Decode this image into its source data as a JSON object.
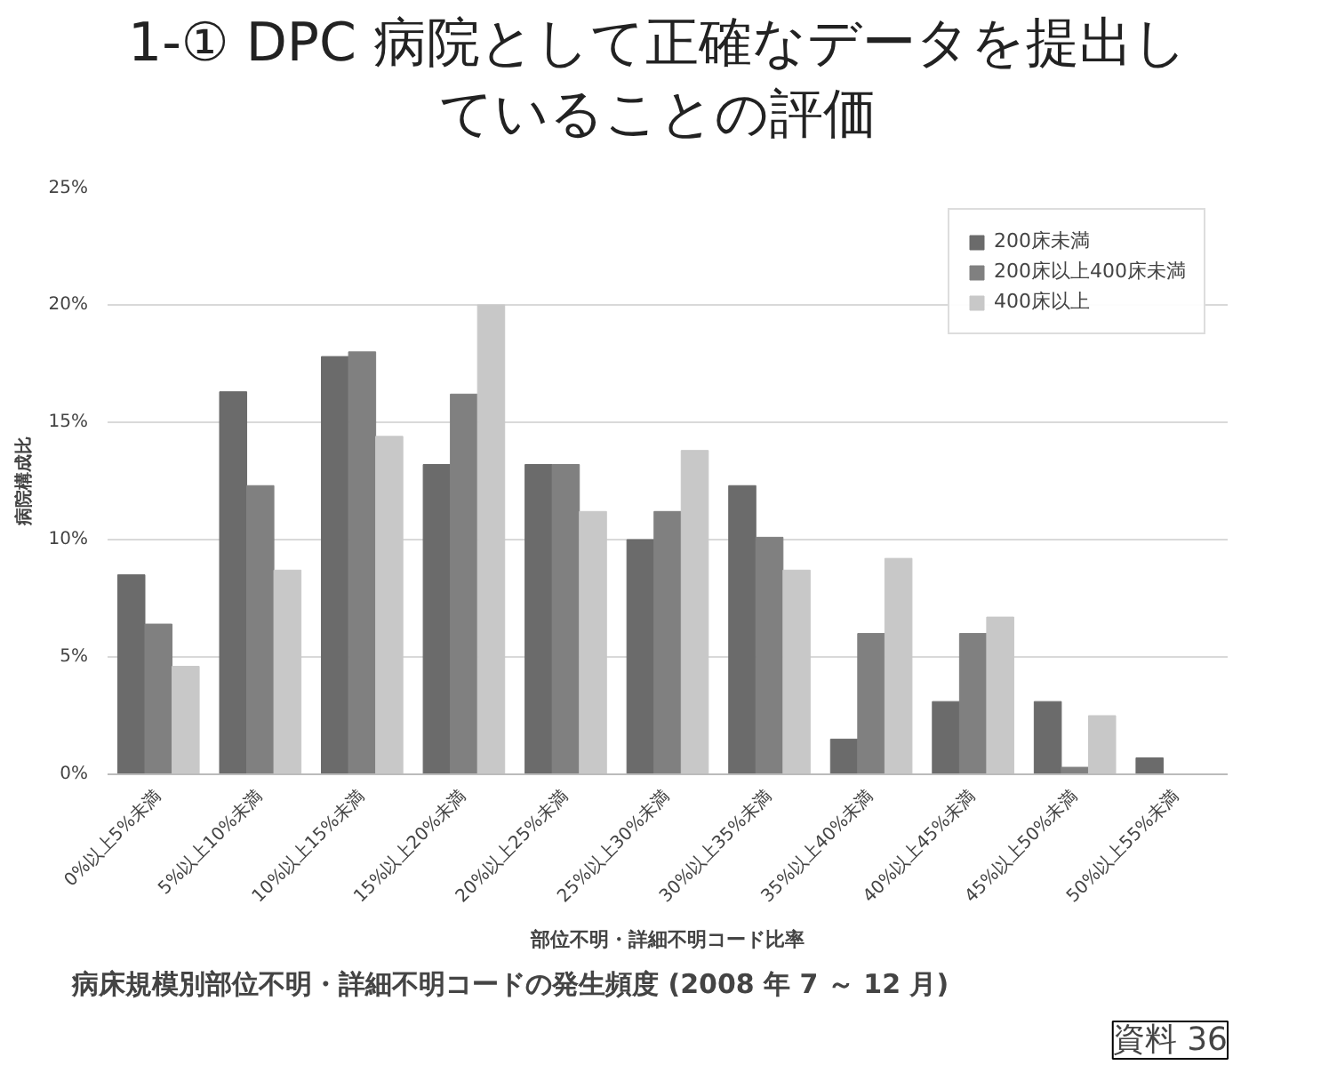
{
  "chart_data": {
    "type": "bar",
    "title": "1-① DPC 病院として正確なデータを提出していることの評価",
    "xlabel": "部位不明・詳細不明コード比率",
    "ylabel": "病院構成比",
    "categories": [
      "0%以上5%未満",
      "5%以上10%未満",
      "10%以上15%未満",
      "15%以上20%未満",
      "20%以上25%未満",
      "25%以上30%未満",
      "30%以上35%未満",
      "35%以上40%未満",
      "40%以上45%未満",
      "45%以上50%未満",
      "50%以上55%未満"
    ],
    "series": [
      {
        "name": "200床未満",
        "color": "#6b6b6b",
        "values": [
          8.5,
          16.3,
          17.8,
          13.2,
          13.2,
          10.0,
          12.3,
          1.5,
          3.1,
          3.1,
          0.7
        ]
      },
      {
        "name": "200床以上400床未満",
        "color": "#808080",
        "values": [
          6.4,
          12.3,
          18.0,
          16.2,
          13.2,
          11.2,
          10.1,
          6.0,
          6.0,
          0.3,
          0
        ]
      },
      {
        "name": "400床以上",
        "color": "#c8c8c8",
        "values": [
          4.6,
          8.7,
          14.4,
          20.0,
          11.2,
          13.8,
          8.7,
          9.2,
          6.7,
          2.5,
          0
        ]
      }
    ],
    "ylim": [
      0,
      25
    ],
    "yticks": [
      {
        "value": 0,
        "label": "0%"
      },
      {
        "value": 5,
        "label": "5%"
      },
      {
        "value": 10,
        "label": "10%"
      },
      {
        "value": 15,
        "label": "15%"
      },
      {
        "value": 20,
        "label": "20%"
      },
      {
        "value": 25,
        "label": "25%"
      }
    ],
    "grid": "y",
    "legend": "top right",
    "annotations": [
      "病床規模別部位不明・詳細不明コードの発生頻度 (2008 年 7 ～ 12 月)",
      "資料 36"
    ]
  }
}
